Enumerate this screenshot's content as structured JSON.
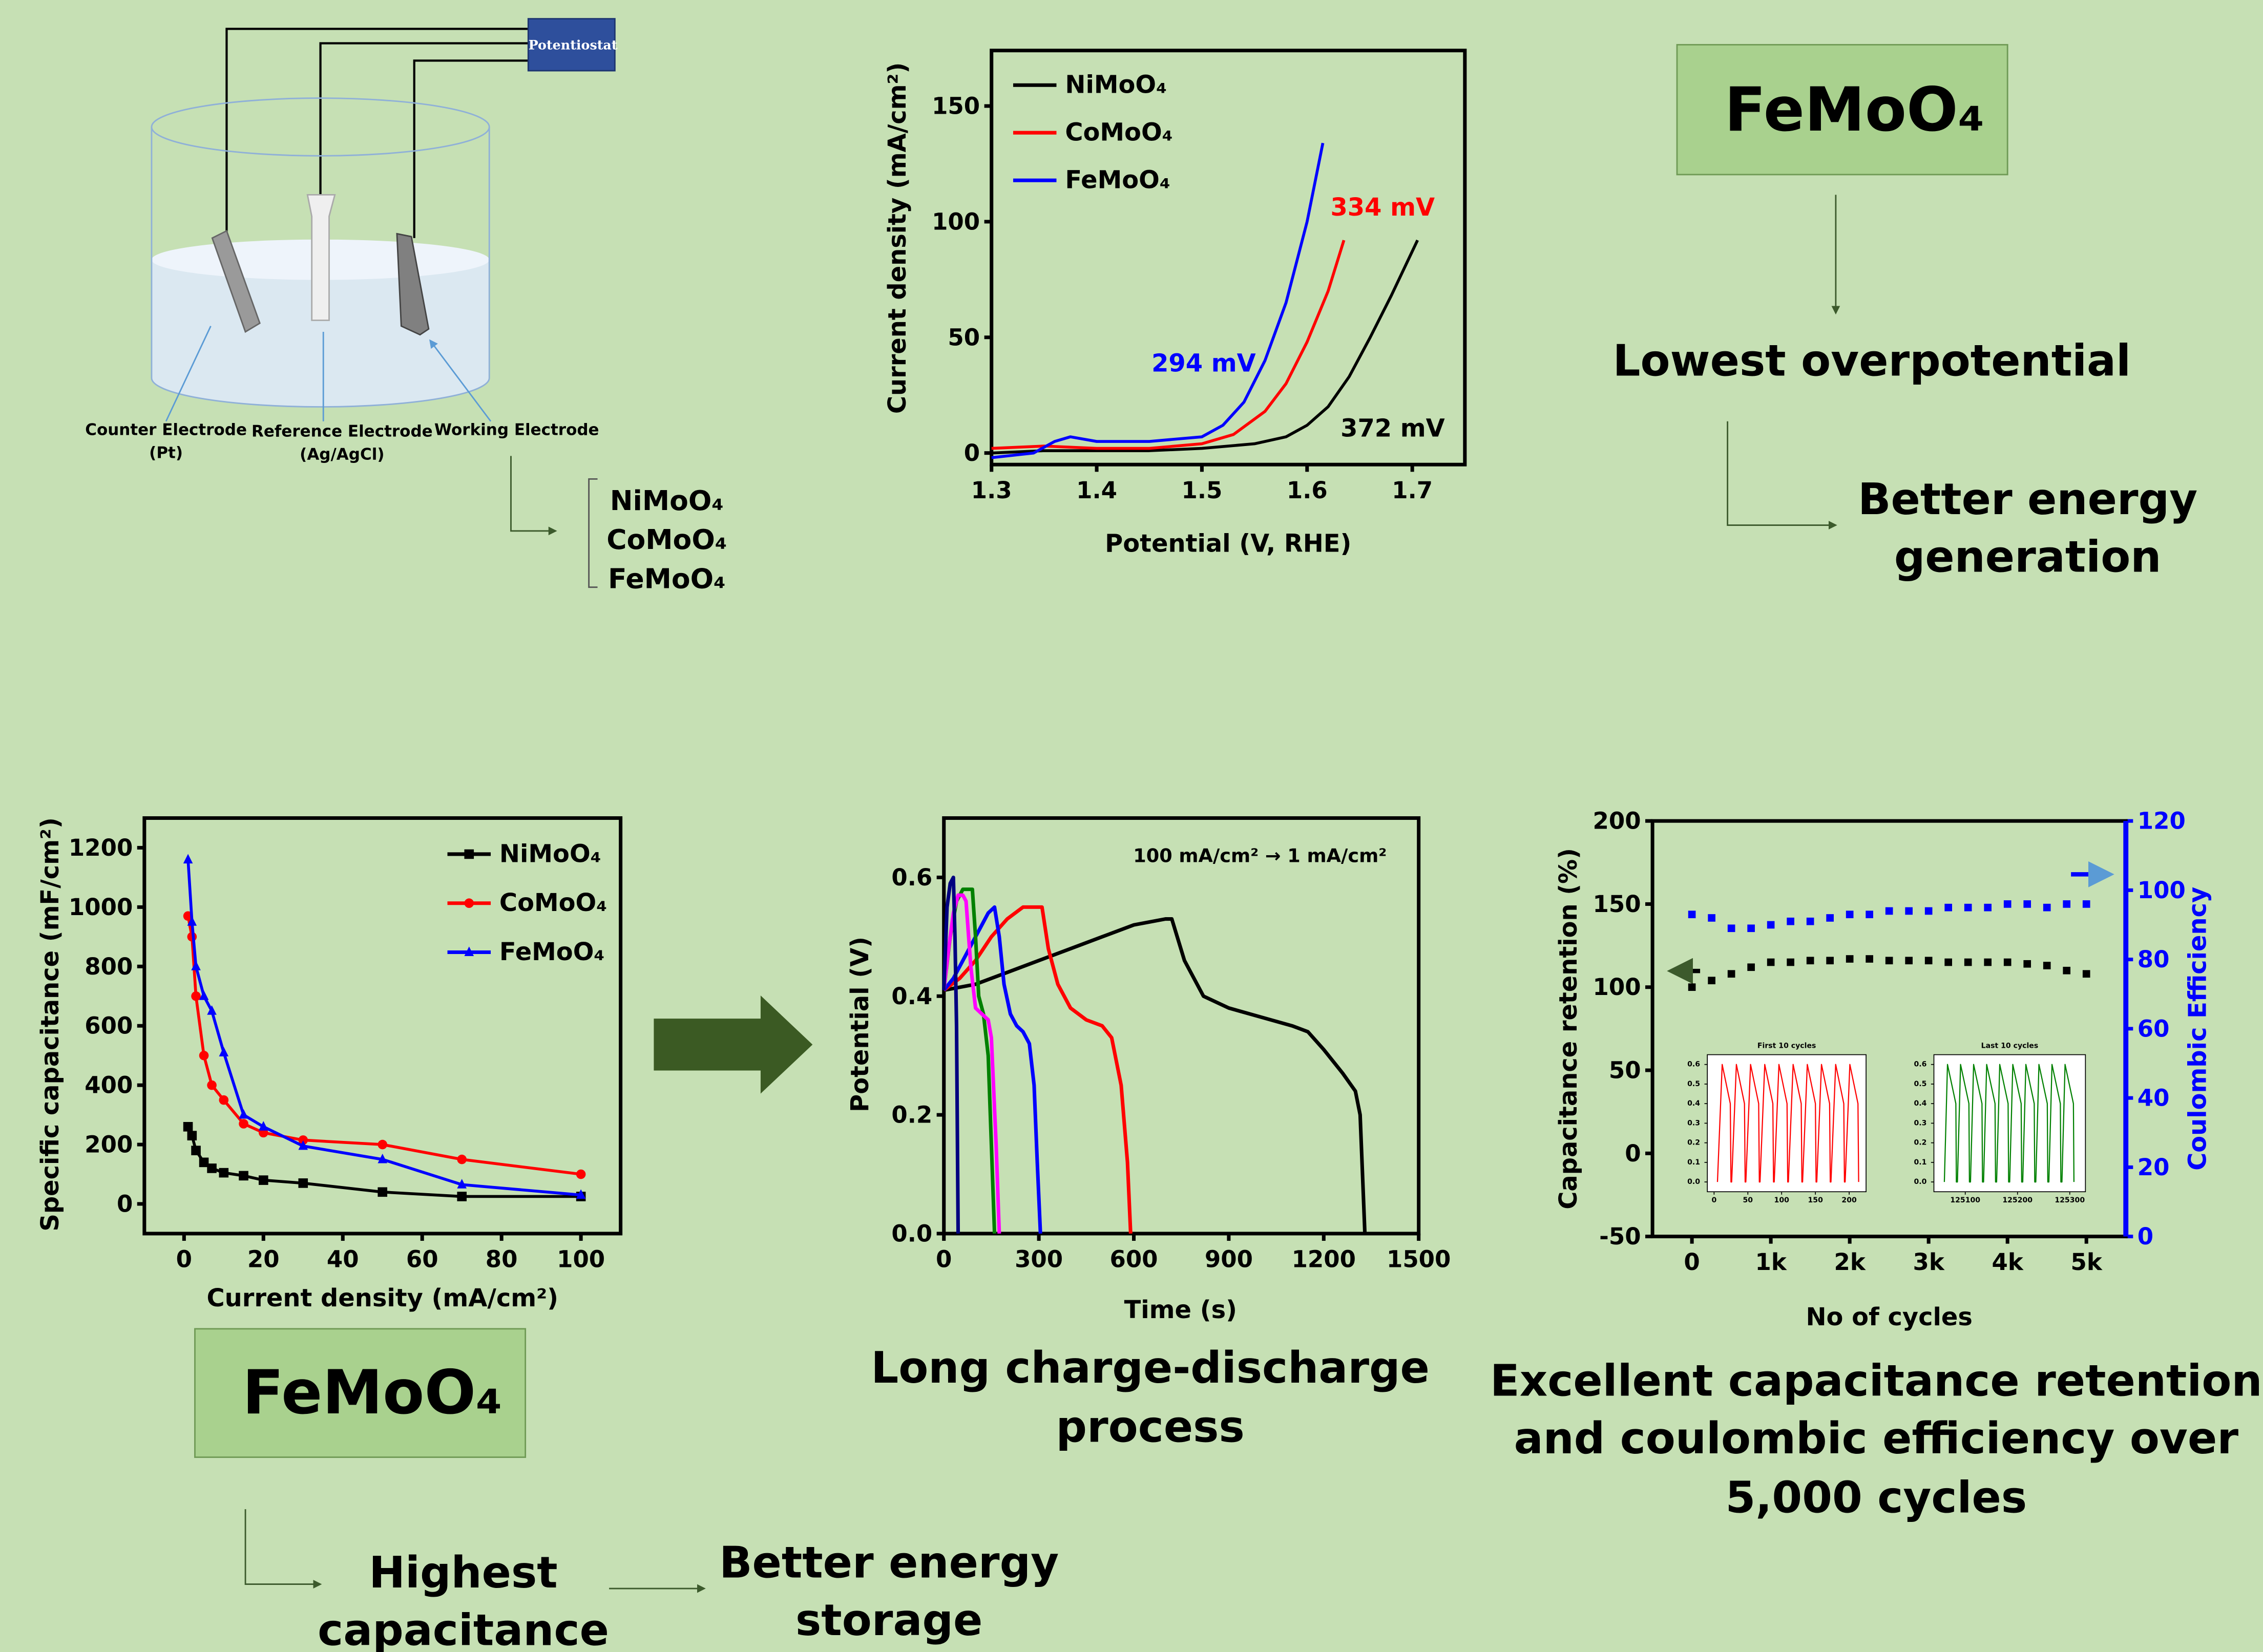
{
  "chart_data": [
    {
      "type": "line",
      "xlabel": "Potential (V, RHE)",
      "ylabel": "Current density (mA/cm²)",
      "xlim": [
        1.3,
        1.75
      ],
      "ylim": [
        -5,
        174
      ],
      "xticks": [
        1.3,
        1.4,
        1.5,
        1.6,
        1.7
      ],
      "yticks": [
        0,
        50,
        100,
        150
      ],
      "legend": "upper left",
      "series": [
        {
          "name": "NiMoO₄",
          "color": "#000000",
          "x": [
            1.3,
            1.35,
            1.4,
            1.45,
            1.5,
            1.55,
            1.58,
            1.6,
            1.62,
            1.64,
            1.66,
            1.68,
            1.705
          ],
          "values": [
            0,
            1,
            1,
            1,
            2,
            4,
            7,
            12,
            20,
            33,
            50,
            68,
            92
          ]
        },
        {
          "name": "CoMoO₄",
          "color": "#ff0000",
          "x": [
            1.3,
            1.35,
            1.4,
            1.45,
            1.5,
            1.53,
            1.56,
            1.58,
            1.6,
            1.62,
            1.635
          ],
          "values": [
            2,
            3,
            2,
            2,
            4,
            8,
            18,
            30,
            48,
            70,
            92
          ]
        },
        {
          "name": "FeMoO₄",
          "color": "#0000ff",
          "x": [
            1.3,
            1.34,
            1.36,
            1.375,
            1.4,
            1.45,
            1.5,
            1.52,
            1.54,
            1.56,
            1.58,
            1.6,
            1.615
          ],
          "values": [
            -2,
            0,
            5,
            7,
            5,
            5,
            7,
            12,
            22,
            40,
            65,
            100,
            134
          ]
        }
      ],
      "annotations": [
        {
          "text": "294 mV",
          "color": "#0000ff"
        },
        {
          "text": "334 mV",
          "color": "#ff0000"
        },
        {
          "text": "372 mV",
          "color": "#000000"
        }
      ]
    },
    {
      "type": "line",
      "xlabel": "Current density (mA/cm²)",
      "ylabel": "Specific capacitance (mF/cm²)",
      "xlim": [
        -10,
        110
      ],
      "ylim": [
        -100,
        1300
      ],
      "xticks": [
        0,
        20,
        40,
        60,
        80,
        100
      ],
      "yticks": [
        0,
        200,
        400,
        600,
        800,
        1000,
        1200
      ],
      "legend": "upper right",
      "x": [
        1,
        2,
        3,
        5,
        7,
        10,
        15,
        20,
        30,
        50,
        70,
        100
      ],
      "series": [
        {
          "name": "NiMoO₄",
          "color": "#000000",
          "marker": "square",
          "values": [
            260,
            230,
            180,
            140,
            120,
            105,
            95,
            80,
            70,
            40,
            25,
            25
          ]
        },
        {
          "name": "CoMoO₄",
          "color": "#ff0000",
          "marker": "circle",
          "values": [
            970,
            900,
            700,
            500,
            400,
            350,
            270,
            240,
            215,
            200,
            150,
            100
          ]
        },
        {
          "name": "FeMoO₄",
          "color": "#0000ff",
          "marker": "triangle",
          "values": [
            1160,
            950,
            800,
            700,
            650,
            510,
            300,
            260,
            195,
            150,
            65,
            30
          ]
        }
      ]
    },
    {
      "type": "line",
      "xlabel": "Time (s)",
      "ylabel": "Potential (V)",
      "xlim": [
        0,
        1500
      ],
      "ylim": [
        0,
        0.7
      ],
      "xticks": [
        0,
        300,
        600,
        900,
        1200,
        1500
      ],
      "yticks": [
        {
          "value": 0,
          "label": "0.0"
        },
        0.2,
        0.4,
        0.6
      ],
      "annotations": [
        {
          "text": "100 mA/cm² → 1 mA/cm²",
          "color": "#000000"
        }
      ],
      "series": [
        {
          "color": "#000000",
          "x": [
            0,
            100,
            200,
            300,
            400,
            500,
            600,
            700,
            720,
            760,
            820,
            900,
            1000,
            1100,
            1150,
            1200,
            1260,
            1300,
            1315,
            1330
          ],
          "values": [
            0.41,
            0.42,
            0.44,
            0.46,
            0.48,
            0.5,
            0.52,
            0.53,
            0.53,
            0.46,
            0.4,
            0.38,
            0.365,
            0.35,
            0.34,
            0.31,
            0.27,
            0.24,
            0.2,
            0
          ]
        },
        {
          "color": "#ff0000",
          "x": [
            0,
            50,
            100,
            150,
            200,
            250,
            290,
            310,
            330,
            360,
            400,
            450,
            500,
            530,
            560,
            580,
            590
          ],
          "values": [
            0.41,
            0.43,
            0.46,
            0.5,
            0.53,
            0.55,
            0.55,
            0.55,
            0.48,
            0.42,
            0.38,
            0.36,
            0.35,
            0.33,
            0.25,
            0.12,
            0
          ]
        },
        {
          "color": "#0000ff",
          "x": [
            0,
            30,
            60,
            90,
            120,
            140,
            160,
            175,
            190,
            210,
            230,
            250,
            270,
            285,
            295,
            305
          ],
          "values": [
            0.41,
            0.43,
            0.46,
            0.49,
            0.52,
            0.54,
            0.55,
            0.5,
            0.42,
            0.37,
            0.35,
            0.34,
            0.32,
            0.25,
            0.12,
            0
          ]
        },
        {
          "color": "#008000",
          "x": [
            0,
            20,
            40,
            60,
            80,
            90,
            100,
            110,
            125,
            140,
            150,
            160
          ],
          "values": [
            0.41,
            0.5,
            0.56,
            0.58,
            0.58,
            0.58,
            0.5,
            0.4,
            0.37,
            0.3,
            0.15,
            0
          ]
        },
        {
          "color": "#ff00ff",
          "x": [
            0,
            15,
            30,
            45,
            60,
            70,
            85,
            100,
            140,
            150,
            165,
            175
          ],
          "values": [
            0.41,
            0.48,
            0.54,
            0.57,
            0.57,
            0.56,
            0.45,
            0.38,
            0.36,
            0.33,
            0.15,
            0
          ]
        },
        {
          "color": "#000080",
          "x": [
            0,
            10,
            20,
            30,
            35,
            40,
            45
          ],
          "values": [
            0.41,
            0.55,
            0.59,
            0.6,
            0.5,
            0.35,
            0
          ]
        }
      ]
    },
    {
      "type": "scatter",
      "xlabel": "No of cycles",
      "ylabel": "Capacitance retention (%)",
      "y2label": "Coulombic Efficiency",
      "y2_color": "#0000ff",
      "xlim": [
        -500,
        5500
      ],
      "ylim": [
        -50,
        200
      ],
      "y2lim": [
        0,
        120
      ],
      "xticks": [
        0,
        {
          "value": 1000,
          "label": "1k"
        },
        {
          "value": 2000,
          "label": "2k"
        },
        {
          "value": 3000,
          "label": "3k"
        },
        {
          "value": 4000,
          "label": "4k"
        },
        {
          "value": 5000,
          "label": "5k"
        }
      ],
      "yticks": [
        -50,
        0,
        50,
        100,
        150,
        200
      ],
      "y2ticks": [
        0,
        20,
        40,
        60,
        80,
        100,
        120
      ],
      "x": [
        0,
        250,
        500,
        750,
        1000,
        1250,
        1500,
        1750,
        2000,
        2250,
        2500,
        2750,
        3000,
        3250,
        3500,
        3750,
        4000,
        4250,
        4500,
        4750,
        5000
      ],
      "series": [
        {
          "color": "#000000",
          "marker": "square",
          "values": [
            100,
            104,
            108,
            112,
            115,
            115,
            116,
            116,
            117,
            117,
            116,
            116,
            116,
            115,
            115,
            115,
            115,
            114,
            113,
            110,
            108
          ]
        },
        {
          "color": "#0000ff",
          "marker": "square",
          "axis": "y2",
          "values": [
            93,
            92,
            89,
            89,
            90,
            91,
            91,
            92,
            93,
            93,
            94,
            94,
            94,
            95,
            95,
            95,
            96,
            96,
            95,
            96,
            96
          ]
        }
      ]
    },
    {
      "type": "line",
      "title": "First 10 cycles",
      "xlim": [
        -10,
        225
      ],
      "ylim": [
        -0.05,
        0.65
      ],
      "xticks": [
        0,
        50,
        100,
        150,
        200
      ],
      "yticks": [
        {
          "value": 0,
          "label": "0.0"
        },
        0.1,
        0.2,
        0.3,
        0.4,
        0.5,
        0.6
      ],
      "series": [
        {
          "color": "#ff0000",
          "x": [
            5,
            12,
            24,
            25,
            26,
            33,
            45,
            46,
            47,
            54,
            66,
            67,
            68,
            75,
            87,
            88,
            89,
            96,
            108,
            109,
            110,
            117,
            129,
            130,
            131,
            138,
            150,
            151,
            152,
            159,
            171,
            172,
            173,
            180,
            192,
            193,
            194,
            201,
            213,
            214
          ],
          "values": [
            0,
            0.6,
            0.4,
            0,
            0,
            0.6,
            0.4,
            0,
            0,
            0.6,
            0.4,
            0,
            0,
            0.6,
            0.4,
            0,
            0,
            0.6,
            0.4,
            0,
            0,
            0.6,
            0.4,
            0,
            0,
            0.6,
            0.4,
            0,
            0,
            0.6,
            0.4,
            0,
            0,
            0.6,
            0.4,
            0,
            0,
            0.6,
            0.4,
            0
          ]
        }
      ]
    },
    {
      "type": "line",
      "title": "Last 10 cycles",
      "xlim": [
        125040,
        125330
      ],
      "ylim": [
        -0.05,
        0.65
      ],
      "xticks": [
        125100,
        125200,
        125300
      ],
      "yticks": [
        {
          "value": 0,
          "label": "0.0"
        },
        0.1,
        0.2,
        0.3,
        0.4,
        0.5,
        0.6
      ],
      "series": [
        {
          "color": "#008000",
          "x": [
            125060,
            125066,
            125082,
            125083,
            125085,
            125091,
            125107,
            125108,
            125110,
            125116,
            125132,
            125133,
            125135,
            125141,
            125157,
            125158,
            125160,
            125166,
            125182,
            125183,
            125185,
            125191,
            125207,
            125208,
            125210,
            125216,
            125232,
            125233,
            125235,
            125241,
            125257,
            125258,
            125260,
            125266,
            125282,
            125283,
            125285,
            125291,
            125307,
            125308
          ],
          "values": [
            0,
            0.6,
            0.4,
            0,
            0,
            0.6,
            0.4,
            0,
            0,
            0.6,
            0.4,
            0,
            0,
            0.6,
            0.4,
            0,
            0,
            0.6,
            0.4,
            0,
            0,
            0.6,
            0.4,
            0,
            0,
            0.6,
            0.4,
            0,
            0,
            0.6,
            0.4,
            0,
            0,
            0.6,
            0.4,
            0,
            0,
            0.6,
            0.4,
            0
          ]
        }
      ]
    }
  ],
  "diagram": {
    "cell": {
      "potentiostat": "Potentiostat",
      "counter": [
        "Counter Electrode",
        "(Pt)"
      ],
      "reference": [
        "Reference Electrode",
        "(Ag/AgCl)"
      ],
      "working": [
        "Working Electrode"
      ]
    },
    "materials": [
      "NiMoO₄",
      "CoMoO₄",
      "FeMoO₄"
    ],
    "top_box": "FeMoO₄",
    "top_steps": [
      [
        "Lowest overpotential"
      ],
      [
        "Better energy",
        "generation"
      ]
    ],
    "bottom_box": "FeMoO₄",
    "bottom_steps": [
      [
        "Highest",
        "capacitance"
      ],
      [
        "Better energy",
        "storage"
      ]
    ],
    "captions": [
      [
        "Long charge-discharge",
        "process"
      ],
      [
        "Excellent capacitance retention",
        "and coulombic efficiency over",
        "5,000 cycles"
      ]
    ]
  }
}
